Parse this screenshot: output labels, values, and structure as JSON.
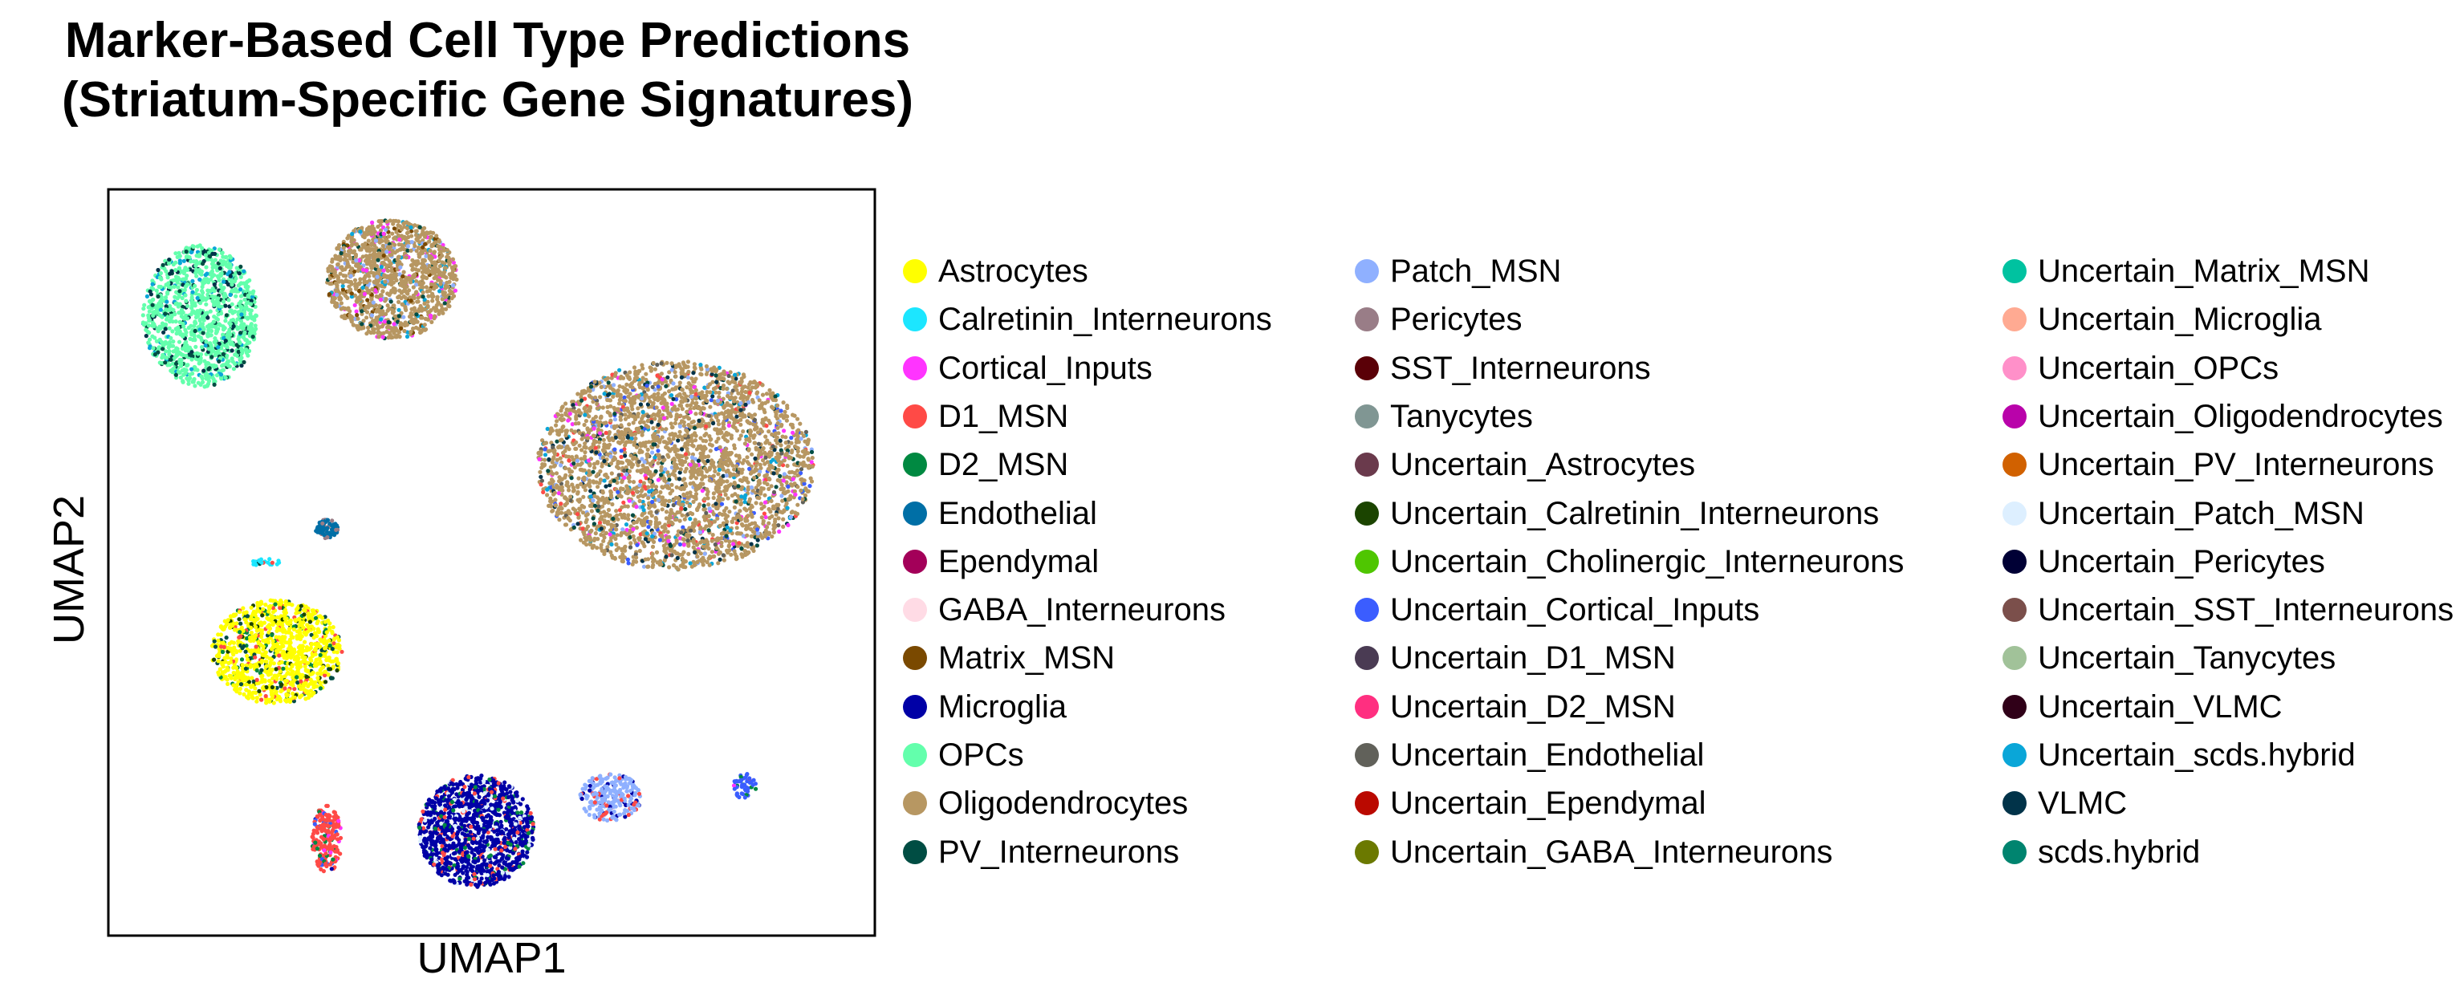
{
  "chart_data": {
    "type": "scatter",
    "title_lines": [
      "Marker-Based Cell Type Predictions",
      "(Striatum-Specific Gene Signatures)"
    ],
    "xlabel": "UMAP1",
    "ylabel": "UMAP2",
    "ticks": "none",
    "grid": false,
    "legend_position": "right",
    "legend_columns": [
      [
        {
          "name": "Astrocytes",
          "color": "#ffff00"
        },
        {
          "name": "Calretinin_Interneurons",
          "color": "#1ce6ff"
        },
        {
          "name": "Cortical_Inputs",
          "color": "#ff34ff"
        },
        {
          "name": "D1_MSN",
          "color": "#ff4a46"
        },
        {
          "name": "D2_MSN",
          "color": "#008941"
        },
        {
          "name": "Endothelial",
          "color": "#006fa6"
        },
        {
          "name": "Ependymal",
          "color": "#a30059"
        },
        {
          "name": "GABA_Interneurons",
          "color": "#ffdbe5"
        },
        {
          "name": "Matrix_MSN",
          "color": "#7a4900"
        },
        {
          "name": "Microglia",
          "color": "#0000a6"
        },
        {
          "name": "OPCs",
          "color": "#63ffac"
        },
        {
          "name": "Oligodendrocytes",
          "color": "#b79762"
        },
        {
          "name": "PV_Interneurons",
          "color": "#004d43"
        }
      ],
      [
        {
          "name": "Patch_MSN",
          "color": "#8fb0ff"
        },
        {
          "name": "Pericytes",
          "color": "#997d87"
        },
        {
          "name": "SST_Interneurons",
          "color": "#5a0007"
        },
        {
          "name": "Tanycytes",
          "color": "#809693"
        },
        {
          "name": "Uncertain_Astrocytes",
          "color": "#6a3a4c"
        },
        {
          "name": "Uncertain_Calretinin_Interneurons",
          "color": "#1b4400"
        },
        {
          "name": "Uncertain_Cholinergic_Interneurons",
          "color": "#4fc601"
        },
        {
          "name": "Uncertain_Cortical_Inputs",
          "color": "#3b5dff"
        },
        {
          "name": "Uncertain_D1_MSN",
          "color": "#4a3b53"
        },
        {
          "name": "Uncertain_D2_MSN",
          "color": "#ff2f80"
        },
        {
          "name": "Uncertain_Endothelial",
          "color": "#61615a"
        },
        {
          "name": "Uncertain_Ependymal",
          "color": "#ba0900"
        },
        {
          "name": "Uncertain_GABA_Interneurons",
          "color": "#6b7900"
        }
      ],
      [
        {
          "name": "Uncertain_Matrix_MSN",
          "color": "#00c2a0"
        },
        {
          "name": "Uncertain_Microglia",
          "color": "#ffaa92"
        },
        {
          "name": "Uncertain_OPCs",
          "color": "#ff90c9"
        },
        {
          "name": "Uncertain_Oligodendrocytes",
          "color": "#b903aa"
        },
        {
          "name": "Uncertain_PV_Interneurons",
          "color": "#d16100"
        },
        {
          "name": "Uncertain_Patch_MSN",
          "color": "#ddefff"
        },
        {
          "name": "Uncertain_Pericytes",
          "color": "#000035"
        },
        {
          "name": "Uncertain_SST_Interneurons",
          "color": "#7b4f4b"
        },
        {
          "name": "Uncertain_Tanycytes",
          "color": "#a1c299"
        },
        {
          "name": "Uncertain_VLMC",
          "color": "#300018"
        },
        {
          "name": "Uncertain_scds.hybrid",
          "color": "#0aa6d8"
        },
        {
          "name": "VLMC",
          "color": "#013349"
        },
        {
          "name": "scds.hybrid",
          "color": "#00846f"
        }
      ]
    ],
    "clusters": [
      {
        "label": "OPCs",
        "fill": "#63ffac",
        "mix": [
          "#004d43",
          "#0aa6d8",
          "#013349"
        ],
        "cx": -7.6,
        "cy": 6.6,
        "rx": 1.5,
        "ry": 1.9,
        "n": 1200
      },
      {
        "label": "Oligodendrocytes",
        "fill": "#b79762",
        "mix": [
          "#0aa6d8",
          "#004d43",
          "#8fb0ff",
          "#ff34ff",
          "#7a4900"
        ],
        "cx": -2.6,
        "cy": 7.6,
        "rx": 1.7,
        "ry": 1.6,
        "n": 1300
      },
      {
        "label": "Oligodendrocytes",
        "fill": "#b79762",
        "mix": [
          "#004d43",
          "#0aa6d8",
          "#61615a",
          "#ff34ff",
          "#8fb0ff",
          "#3b5dff",
          "#ff4a46",
          "#013349"
        ],
        "cx": 4.8,
        "cy": 2.6,
        "rx": 3.6,
        "ry": 2.8,
        "n": 3200
      },
      {
        "label": "Endothelial",
        "fill": "#006fa6",
        "mix": [
          "#997d87"
        ],
        "cx": -4.3,
        "cy": 0.9,
        "rx": 0.3,
        "ry": 0.25,
        "n": 80
      },
      {
        "label": "Astrocytes",
        "fill": "#ffff00",
        "mix": [
          "#004d43",
          "#1b4400",
          "#008941",
          "#ff4a46"
        ],
        "cx": -5.6,
        "cy": -2.4,
        "rx": 1.7,
        "ry": 1.4,
        "n": 1100
      },
      {
        "label": "Microglia",
        "fill": "#0000a6",
        "mix": [
          "#ff4a46",
          "#008941",
          "#ddefff"
        ],
        "cx": -0.4,
        "cy": -7.2,
        "rx": 1.5,
        "ry": 1.5,
        "n": 1300
      },
      {
        "label": "Patch_MSN",
        "fill": "#8fb0ff",
        "mix": [
          "#0000a6",
          "#ff4a46"
        ],
        "cx": 3.1,
        "cy": -6.3,
        "rx": 0.8,
        "ry": 0.65,
        "n": 250
      },
      {
        "label": "D1_MSN",
        "fill": "#ff4a46",
        "mix": [
          "#008941",
          "#3b5dff",
          "#ff34ff",
          "#0000a6"
        ],
        "cx": -4.3,
        "cy": -7.4,
        "rx": 0.4,
        "ry": 0.9,
        "n": 200
      },
      {
        "label": "Cortical_Inputs",
        "fill": "#3b5dff",
        "mix": [
          "#ff4a46",
          "#008941",
          "#ff34ff"
        ],
        "cx": 6.6,
        "cy": -6.0,
        "rx": 0.3,
        "ry": 0.35,
        "n": 50
      },
      {
        "label": "Calretinin_Interneurons",
        "fill": "#1ce6ff",
        "mix": [
          "#ff4a46",
          "#004d43"
        ],
        "cx": -5.9,
        "cy": 0.0,
        "rx": 0.4,
        "ry": 0.1,
        "n": 20
      }
    ],
    "xlim": [
      -10,
      10
    ],
    "ylim": [
      -10,
      10
    ]
  }
}
